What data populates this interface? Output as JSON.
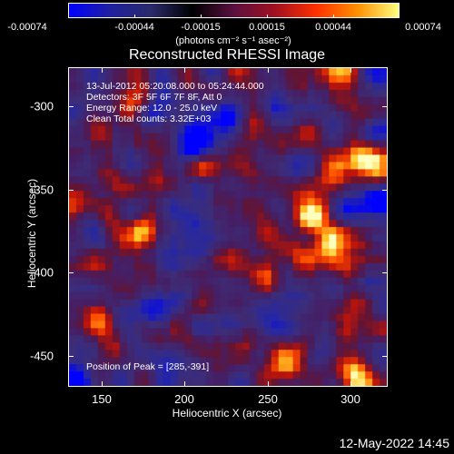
{
  "colorbar": {
    "colors": [
      "#0000ff",
      "#2020a0",
      "#2a2a6a",
      "#000000",
      "#5a1040",
      "#a01020",
      "#ff3000",
      "#ff9000",
      "#ffff80"
    ],
    "tick_labels": [
      "-0.00074",
      "-0.00044",
      "-0.00015",
      "0.00015",
      "0.00044",
      "0.00074"
    ],
    "units": "(photons cm⁻² s⁻¹ asec⁻²)"
  },
  "title": "Reconstructed RHESSI Image",
  "info": {
    "line1": "13-Jul-2012 05:20:08.000 to 05:24:44.000",
    "line2": "Detectors: 3F 5F 6F 7F 8F, Att 0",
    "line3": "Energy Range: 12.0 - 25.0 keV",
    "line4": "Clean     Total counts: 3.32E+03",
    "peak": "Position of Peak = [285,-391]"
  },
  "chart_data": {
    "type": "heatmap",
    "xlabel": "Heliocentric X (arcsec)",
    "ylabel": "Heliocentric Y (arcsec)",
    "xlim": [
      130,
      322
    ],
    "ylim": [
      -470,
      -278
    ],
    "xticks": [
      150,
      200,
      250,
      300
    ],
    "yticks": [
      -300,
      -350,
      -400,
      -450
    ],
    "xtick_labels": [
      "150",
      "200",
      "250",
      "300"
    ],
    "ytick_labels": [
      "-300",
      "-350",
      "-400",
      "-450"
    ],
    "peak": [
      285,
      -391
    ]
  },
  "timestamp": "12-May-2022 14:45"
}
